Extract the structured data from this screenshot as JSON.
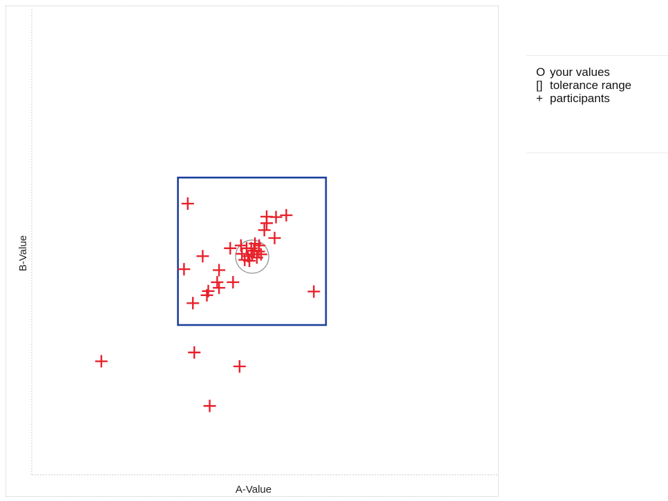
{
  "chart_data": {
    "type": "scatter",
    "xlabel": "A-Value",
    "ylabel": "B-Value",
    "xlim": [
      0,
      100
    ],
    "ylim": [
      0,
      100
    ],
    "legend": {
      "placement": "right",
      "entries": [
        {
          "symbol": "O",
          "label": "your values"
        },
        {
          "symbol": "[]",
          "label": "tolerance range"
        },
        {
          "symbol": "+",
          "label": "participants"
        }
      ]
    },
    "your_values": {
      "x": 47.2,
      "y": 46.9
    },
    "tolerance_range": {
      "x": [
        31.3,
        63.0
      ],
      "y": [
        32.2,
        63.9
      ]
    },
    "participants": [
      {
        "x": 33.4,
        "y": 58.3
      },
      {
        "x": 54.5,
        "y": 55.8
      },
      {
        "x": 52.3,
        "y": 55.4
      },
      {
        "x": 50.3,
        "y": 55.5
      },
      {
        "x": 50.3,
        "y": 54.1
      },
      {
        "x": 52.0,
        "y": 50.9
      },
      {
        "x": 49.8,
        "y": 52.6
      },
      {
        "x": 42.5,
        "y": 48.7
      },
      {
        "x": 44.8,
        "y": 49.3
      },
      {
        "x": 46.0,
        "y": 48.7
      },
      {
        "x": 47.0,
        "y": 48.7
      },
      {
        "x": 47.8,
        "y": 49.7
      },
      {
        "x": 48.7,
        "y": 49.3
      },
      {
        "x": 47.6,
        "y": 48.2
      },
      {
        "x": 48.6,
        "y": 48.0
      },
      {
        "x": 47.2,
        "y": 47.4
      },
      {
        "x": 48.2,
        "y": 46.7
      },
      {
        "x": 49.1,
        "y": 47.4
      },
      {
        "x": 46.3,
        "y": 47.0
      },
      {
        "x": 45.6,
        "y": 46.2
      },
      {
        "x": 46.6,
        "y": 46.0
      },
      {
        "x": 45.0,
        "y": 47.5
      },
      {
        "x": 36.6,
        "y": 47.0
      },
      {
        "x": 32.6,
        "y": 44.2
      },
      {
        "x": 40.1,
        "y": 44.0
      },
      {
        "x": 39.7,
        "y": 41.4
      },
      {
        "x": 43.1,
        "y": 41.4
      },
      {
        "x": 40.1,
        "y": 40.2
      },
      {
        "x": 37.8,
        "y": 39.5
      },
      {
        "x": 37.5,
        "y": 38.6
      },
      {
        "x": 34.5,
        "y": 36.9
      },
      {
        "x": 60.4,
        "y": 39.4
      },
      {
        "x": 14.9,
        "y": 24.4
      },
      {
        "x": 34.8,
        "y": 26.3
      },
      {
        "x": 44.5,
        "y": 23.3
      },
      {
        "x": 38.1,
        "y": 14.8
      }
    ]
  }
}
